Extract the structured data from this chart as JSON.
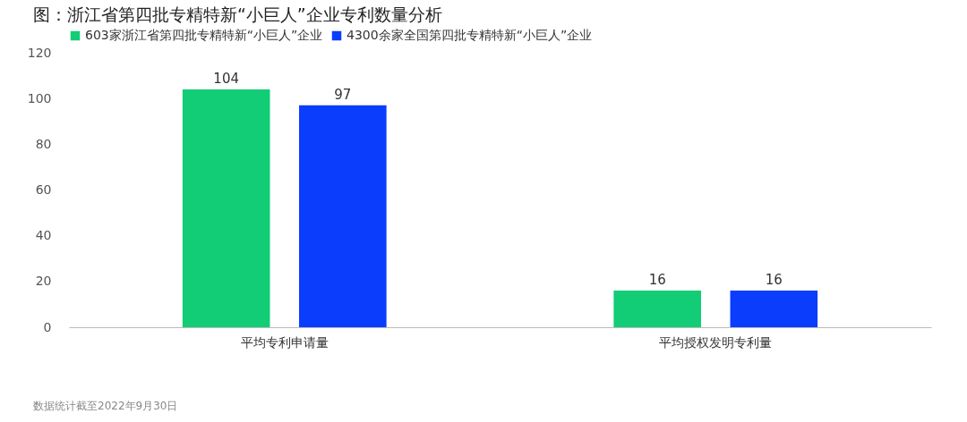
{
  "chart_data": {
    "type": "bar",
    "title": "图：浙江省第四批专精特新“小巨人”企业专利数量分析",
    "categories": [
      "平均专利申请量",
      "平均授权发明专利量"
    ],
    "series": [
      {
        "name": "603家浙江省第四批专精特新“小巨人”企业",
        "color": "#12cd76",
        "values": [
          104,
          16
        ]
      },
      {
        "name": "4300余家全国第四批专精特新“小巨人”企业",
        "color": "#0b3dfd",
        "values": [
          97,
          16
        ]
      }
    ],
    "ylim": [
      0,
      120
    ],
    "yticks": [
      0,
      20,
      40,
      60,
      80,
      100,
      120
    ],
    "grid": false,
    "legend": "top left",
    "data_labels": true,
    "annotations": [
      "数据统计截至2022年9月30日"
    ]
  }
}
